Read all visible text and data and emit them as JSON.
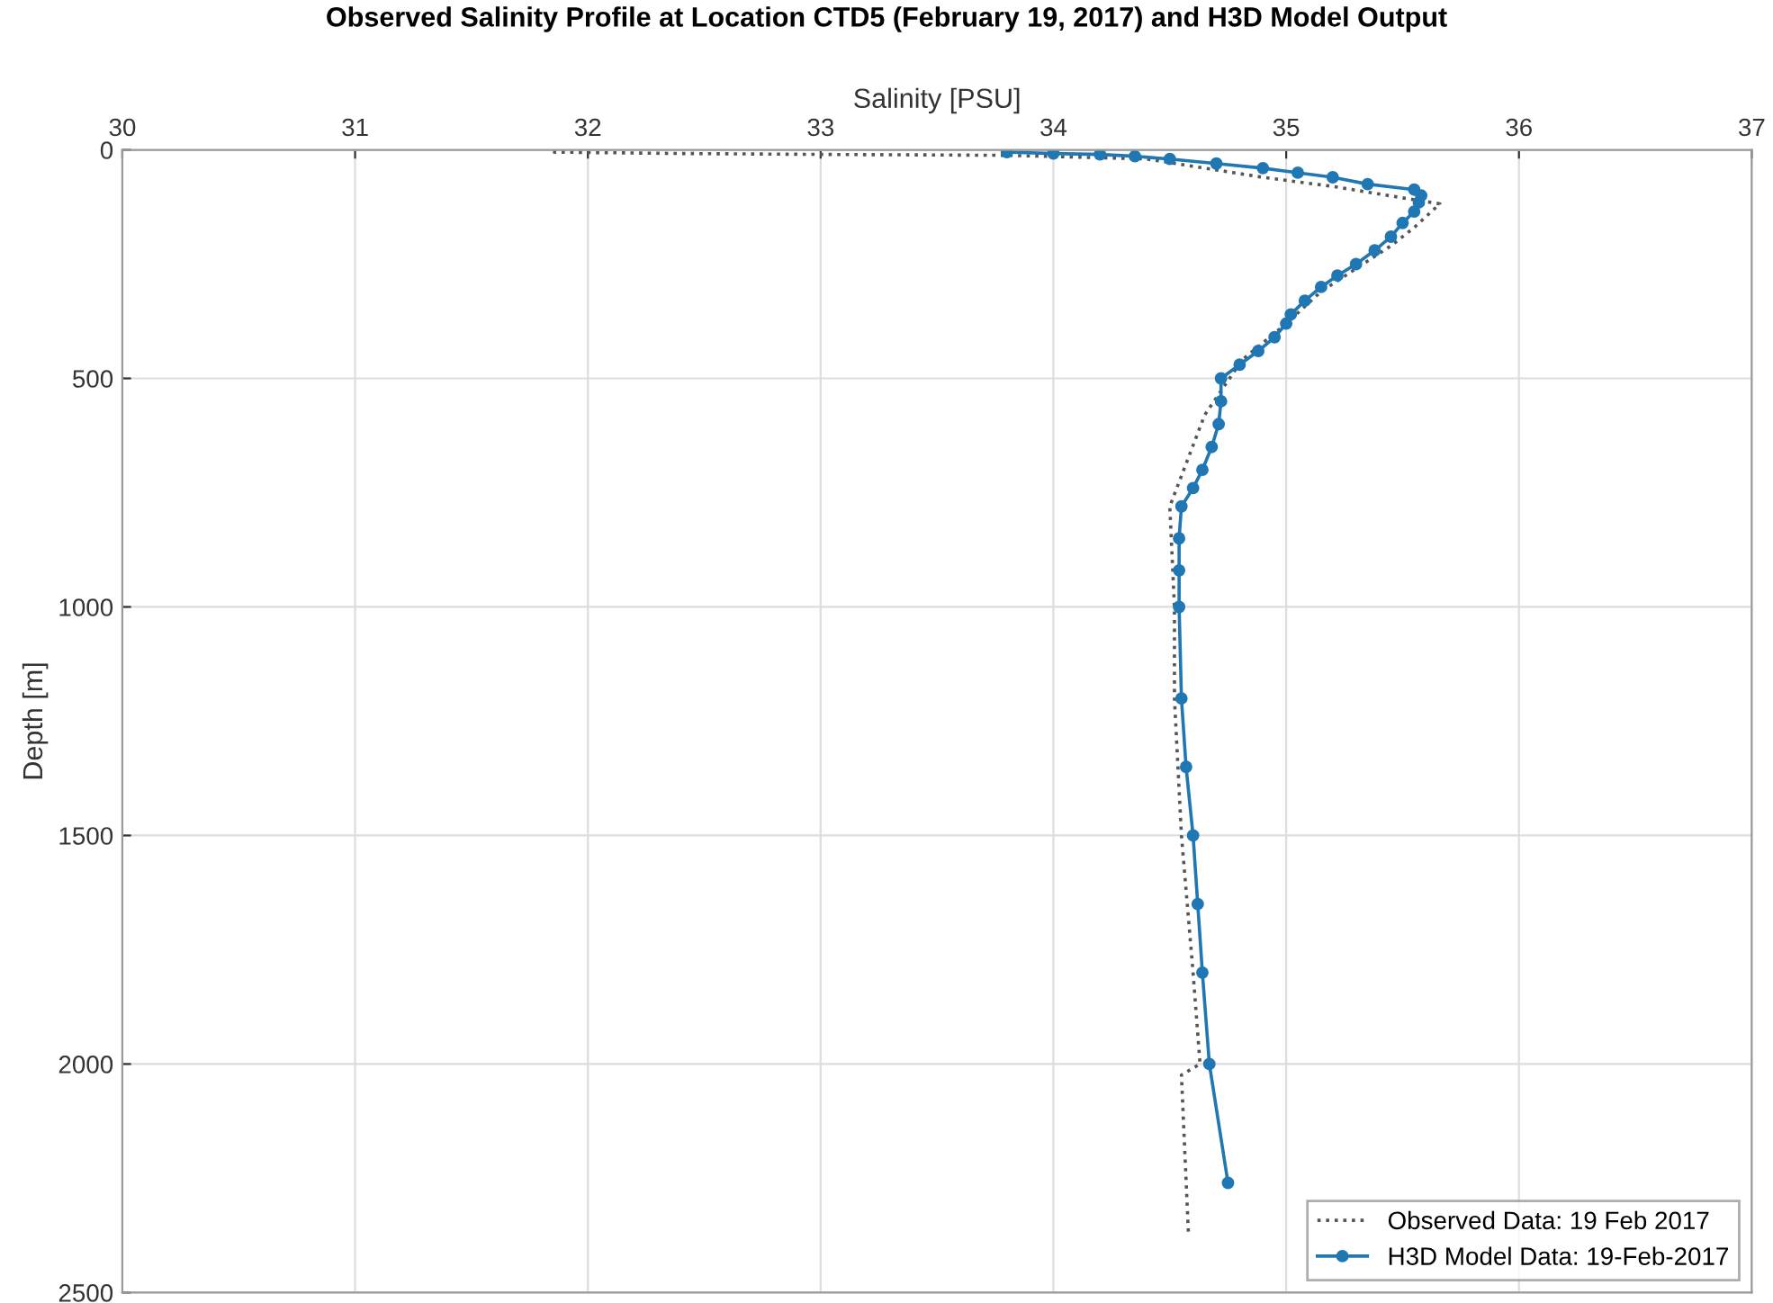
{
  "chart_data": {
    "type": "line",
    "title": "Observed Salinity Profile at Location CTD5 (February 19, 2017) and H3D Model Output",
    "xlabel": "Salinity [PSU]",
    "ylabel": "Depth [m]",
    "xlim": [
      30,
      37
    ],
    "xticks": [
      30,
      31,
      32,
      33,
      34,
      35,
      36,
      37
    ],
    "ylim": [
      2500,
      0
    ],
    "yticks": [
      0,
      500,
      1000,
      1500,
      2000,
      2500
    ],
    "grid": true,
    "legend": "bottom right",
    "series": [
      {
        "name": "Observed Data: 19 Feb 2017",
        "color": "#555555",
        "line_style": "dotted",
        "marker": "none",
        "x": [
          31.85,
          32.4,
          33.0,
          33.8,
          34.4,
          34.9,
          35.2,
          35.5,
          35.66,
          35.55,
          35.45,
          35.3,
          35.15,
          35.0,
          34.81,
          34.65,
          34.5,
          34.52,
          34.52,
          34.55,
          34.6,
          34.63,
          34.55,
          34.58
        ],
        "values": [
          5,
          8,
          10,
          12,
          20,
          60,
          80,
          105,
          118,
          170,
          210,
          260,
          310,
          380,
          460,
          580,
          780,
          1000,
          1200,
          1500,
          1800,
          2000,
          2024,
          2370
        ]
      },
      {
        "name": "H3D Model Data: 19-Feb-2017",
        "color": "#1f77b4",
        "line_style": "solid",
        "marker": "circle",
        "x": [
          33.8,
          34.0,
          34.2,
          34.35,
          34.5,
          34.7,
          34.9,
          35.05,
          35.2,
          35.35,
          35.55,
          35.58,
          35.57,
          35.55,
          35.5,
          35.45,
          35.38,
          35.3,
          35.22,
          35.15,
          35.08,
          35.02,
          35.0,
          34.95,
          34.88,
          34.8,
          34.72,
          34.72,
          34.71,
          34.68,
          34.64,
          34.6,
          34.55,
          34.54,
          34.54,
          34.54,
          34.55,
          34.57,
          34.6,
          34.62,
          34.64,
          34.67,
          34.75
        ],
        "values": [
          5,
          8,
          10,
          14,
          20,
          30,
          40,
          50,
          60,
          75,
          87,
          100,
          115,
          135,
          160,
          190,
          220,
          250,
          275,
          300,
          330,
          360,
          380,
          410,
          440,
          470,
          500,
          550,
          600,
          650,
          700,
          740,
          780,
          850,
          920,
          1000,
          1200,
          1350,
          1500,
          1650,
          1800,
          2000,
          2260
        ]
      }
    ]
  }
}
